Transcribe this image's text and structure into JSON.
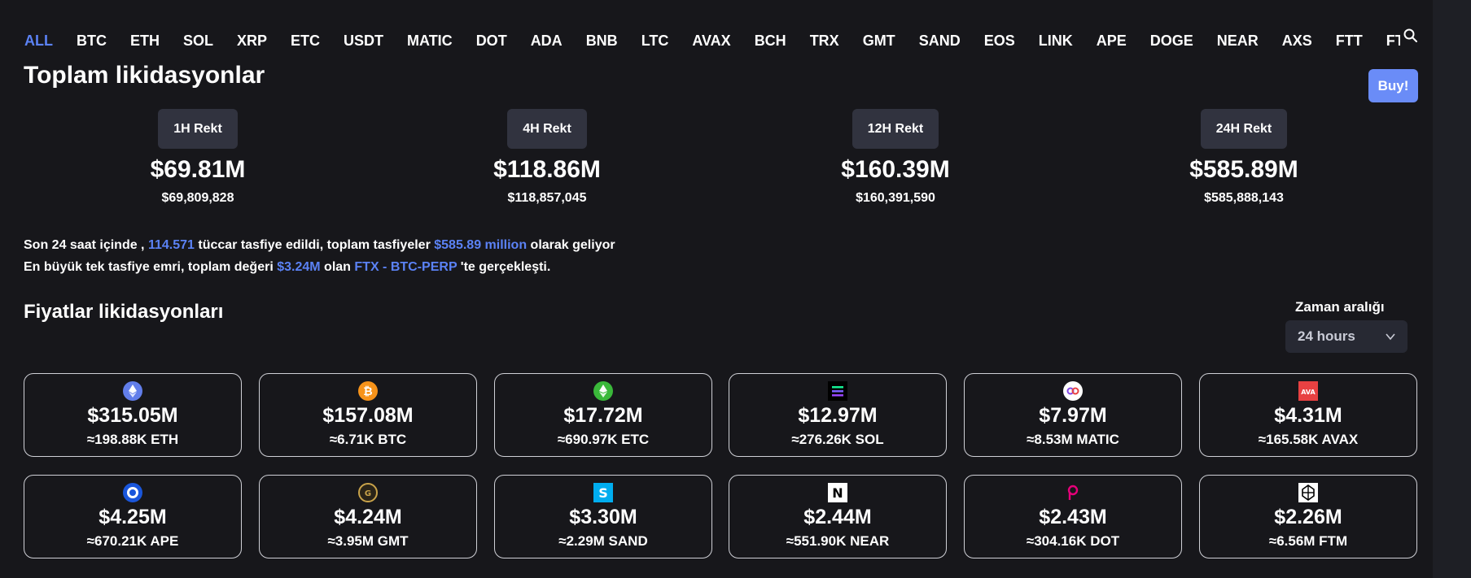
{
  "tabs": [
    "ALL",
    "BTC",
    "ETH",
    "SOL",
    "XRP",
    "ETC",
    "USDT",
    "MATIC",
    "DOT",
    "ADA",
    "BNB",
    "LTC",
    "AVAX",
    "BCH",
    "TRX",
    "GMT",
    "SAND",
    "EOS",
    "LINK",
    "APE",
    "DOGE",
    "NEAR",
    "AXS",
    "FTT",
    "FTI"
  ],
  "active_tab": "ALL",
  "total": {
    "title": "Toplam likidasyonlar",
    "buy_label": "Buy!",
    "stats": [
      {
        "label": "1H Rekt",
        "value": "$69.81M",
        "exact": "$69,809,828"
      },
      {
        "label": "4H Rekt",
        "value": "$118.86M",
        "exact": "$118,857,045"
      },
      {
        "label": "12H Rekt",
        "value": "$160.39M",
        "exact": "$160,391,590"
      },
      {
        "label": "24H Rekt",
        "value": "$585.89M",
        "exact": "$585,888,143"
      }
    ]
  },
  "summary": {
    "line1_a": "Son 24 saat içinde ,",
    "traders": "114.571",
    "line1_b": "tüccar tasfiye edildi, toplam tasfiyeler",
    "total_amount": "$585.89 million",
    "line1_c": "olarak geliyor",
    "line2_a": "En büyük tek tasfiye emri, toplam değeri",
    "largest_value": "$3.24M",
    "line2_b": "olan",
    "largest_pair": "FTX - BTC-PERP",
    "line2_c": "'te gerçekleşti."
  },
  "prices": {
    "title": "Fiyatlar likidasyonları",
    "range_label": "Zaman aralığı",
    "range_value": "24 hours"
  },
  "cards": [
    {
      "icon": "eth-icon",
      "color": "#627eea",
      "usd": "$315.05M",
      "amount": "≈198.88K ETH"
    },
    {
      "icon": "btc-icon",
      "color": "#f7931a",
      "usd": "$157.08M",
      "amount": "≈6.71K BTC"
    },
    {
      "icon": "etc-icon",
      "color": "#3ab83a",
      "usd": "$17.72M",
      "amount": "≈690.97K ETC"
    },
    {
      "icon": "sol-icon",
      "color": "#14f195",
      "usd": "$12.97M",
      "amount": "≈276.26K SOL"
    },
    {
      "icon": "matic-icon",
      "color": "#8247e5",
      "usd": "$7.97M",
      "amount": "≈8.53M MATIC"
    },
    {
      "icon": "avax-icon",
      "color": "#e84142",
      "usd": "$4.31M",
      "amount": "≈165.58K AVAX"
    },
    {
      "icon": "ape-icon",
      "color": "#1a56db",
      "usd": "$4.25M",
      "amount": "≈670.21K APE"
    },
    {
      "icon": "gmt-icon",
      "color": "#c9a34a",
      "usd": "$4.24M",
      "amount": "≈3.95M GMT"
    },
    {
      "icon": "sand-icon",
      "color": "#00adef",
      "usd": "$3.30M",
      "amount": "≈2.29M SAND"
    },
    {
      "icon": "near-icon",
      "color": "#ffffff",
      "usd": "$2.44M",
      "amount": "≈551.90K NEAR"
    },
    {
      "icon": "dot-icon",
      "color": "#e6007a",
      "usd": "$2.43M",
      "amount": "≈304.16K DOT"
    },
    {
      "icon": "ftm-icon",
      "color": "#ffffff",
      "usd": "$2.26M",
      "amount": "≈6.56M FTM"
    }
  ]
}
